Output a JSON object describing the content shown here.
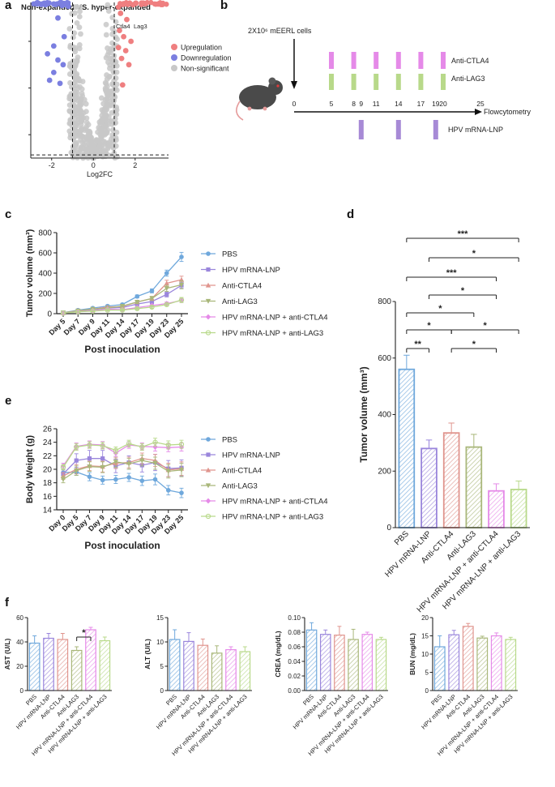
{
  "panel_labels": [
    "a",
    "b",
    "c",
    "d",
    "e",
    "f"
  ],
  "colors": {
    "pbs": "#6fa8dc",
    "hpv": "#9a86dc",
    "ctla4": "#e0958e",
    "lag3": "#a9b77a",
    "hpv_ctla4": "#e58ae8",
    "hpv_lag3": "#b8d98a",
    "up": "#ef7f80",
    "down": "#7b7fe0",
    "ns": "#c8c8c8"
  },
  "chart_data": [
    {
      "id": "a",
      "type": "scatter",
      "title": "Non-expanded VS. hyper-expanded",
      "xlabel": "Log2FC",
      "xticks": [
        "-2",
        "0",
        "2"
      ],
      "xlim": [
        -3,
        3.6
      ],
      "ylim": [
        0,
        1
      ],
      "gene_labels": [
        "Ctla4",
        "Lag3"
      ],
      "legend": [
        "Upregulation",
        "Downregulation",
        "Non-significant"
      ],
      "legend_position": "right",
      "up_points": [
        [
          1.2,
          0.97
        ],
        [
          1.5,
          0.99
        ],
        [
          1.9,
          0.985
        ],
        [
          2.4,
          0.995
        ],
        [
          3.1,
          0.99
        ],
        [
          1.3,
          0.93
        ],
        [
          1.6,
          0.89
        ],
        [
          1.25,
          0.82
        ],
        [
          1.45,
          0.78
        ],
        [
          1.8,
          0.75
        ],
        [
          1.2,
          0.71
        ],
        [
          1.55,
          0.69
        ],
        [
          1.35,
          0.64
        ],
        [
          1.7,
          0.6
        ],
        [
          1.4,
          0.47
        ]
      ],
      "down_points": [
        [
          -2.7,
          0.99
        ],
        [
          -2.3,
          0.985
        ],
        [
          -1.9,
          0.99
        ],
        [
          -1.5,
          0.98
        ],
        [
          -1.2,
          0.975
        ],
        [
          -1.7,
          0.9
        ],
        [
          -1.4,
          0.78
        ],
        [
          -1.9,
          0.72
        ],
        [
          -2.2,
          0.67
        ],
        [
          -1.7,
          0.63
        ],
        [
          -1.45,
          0.6
        ],
        [
          -1.9,
          0.55
        ],
        [
          -2.1,
          0.5
        ],
        [
          -1.6,
          0.48
        ]
      ]
    },
    {
      "id": "b",
      "type": "diagram",
      "cells_label": "2X10⁶ mEERL cells",
      "timeline_ticks": [
        "0",
        "5",
        "8",
        "9",
        "11",
        "14",
        "17",
        "19",
        "20",
        "25"
      ],
      "tick_days": [
        0,
        5,
        8,
        9,
        11,
        14,
        17,
        19,
        20,
        25
      ],
      "endpoint": "Flowcytometry",
      "ctla4_label": "Anti-CTLA4",
      "lag3_label": "Anti-LAG3",
      "hpv_label": "HPV mRNA-LNP",
      "checkpoint_days": [
        5,
        8,
        11,
        14,
        17,
        20
      ],
      "vaccine_days": [
        9,
        14,
        19
      ]
    },
    {
      "id": "c",
      "type": "line",
      "ylabel": "Tumor volume (mm³)",
      "xlabel": "Post inoculation",
      "categories": [
        "Day 5",
        "Day 7",
        "Day 9",
        "Day 11",
        "Day 14",
        "Day 17",
        "Day 19",
        "Day 23",
        "Day 25"
      ],
      "ylim": [
        0,
        800
      ],
      "yticks": [
        "0",
        "200",
        "400",
        "600",
        "800"
      ],
      "legend_position": "right",
      "series": [
        {
          "name": "PBS",
          "values": [
            10,
            35,
            55,
            75,
            90,
            170,
            225,
            400,
            560
          ],
          "err": [
            3,
            5,
            8,
            10,
            12,
            15,
            20,
            30,
            45
          ]
        },
        {
          "name": "HPV mRNA-LNP",
          "values": [
            8,
            25,
            40,
            55,
            60,
            95,
            120,
            190,
            280
          ],
          "err": [
            3,
            5,
            7,
            10,
            10,
            15,
            20,
            25,
            30
          ]
        },
        {
          "name": "Anti-CTLA4",
          "values": [
            8,
            30,
            45,
            65,
            70,
            115,
            150,
            300,
            335
          ],
          "err": [
            3,
            5,
            7,
            10,
            10,
            15,
            20,
            30,
            35
          ]
        },
        {
          "name": "Anti-LAG3",
          "values": [
            10,
            28,
            45,
            55,
            75,
            115,
            150,
            250,
            285
          ],
          "err": [
            3,
            5,
            7,
            10,
            12,
            15,
            20,
            30,
            40
          ]
        },
        {
          "name": "HPV mRNA-LNP + anti-CTLA4",
          "values": [
            5,
            20,
            30,
            45,
            40,
            60,
            80,
            100,
            130
          ],
          "err": [
            2,
            4,
            5,
            7,
            8,
            10,
            12,
            15,
            20
          ]
        },
        {
          "name": "HPV mRNA-LNP + anti-LAG3",
          "values": [
            5,
            18,
            25,
            35,
            35,
            50,
            65,
            90,
            135
          ],
          "err": [
            2,
            4,
            5,
            7,
            8,
            10,
            12,
            15,
            25
          ]
        }
      ]
    },
    {
      "id": "d",
      "type": "bar",
      "ylabel": "Tumor volume (mm³)",
      "categories": [
        "PBS",
        "HPV mRNA-LNP",
        "Anti-CTLA4",
        "Anti-LAG3",
        "HPV mRNA-LNP + anti-CTLA4",
        "HPV mRNA-LNP + anti-LAG3"
      ],
      "values": [
        560,
        280,
        335,
        285,
        130,
        135
      ],
      "errors": [
        50,
        30,
        35,
        45,
        25,
        30
      ],
      "ylim": [
        0,
        800
      ],
      "yticks": [
        "0",
        "200",
        "400",
        "600",
        "800"
      ],
      "significance": [
        {
          "from": 0,
          "to": 5,
          "label": "***"
        },
        {
          "from": 1,
          "to": 5,
          "label": "*"
        },
        {
          "from": 0,
          "to": 4,
          "label": "***"
        },
        {
          "from": 1,
          "to": 4,
          "label": "*"
        },
        {
          "from": 0,
          "to": 3,
          "label": "*"
        },
        {
          "from": 0,
          "to": 2,
          "label": "*"
        },
        {
          "from": 2,
          "to": 5,
          "label": "*"
        },
        {
          "from": 0,
          "to": 1,
          "label": "**"
        },
        {
          "from": 2,
          "to": 4,
          "label": "*"
        }
      ]
    },
    {
      "id": "e",
      "type": "line",
      "ylabel": "Body Weight (g)",
      "xlabel": "Post inoculation",
      "categories": [
        "Day 0",
        "Day 5",
        "Day 7",
        "Day 9",
        "Day 11",
        "Day 14",
        "Day 17",
        "Day 19",
        "Day 23",
        "Day 25"
      ],
      "ylim": [
        14,
        26
      ],
      "yticks": [
        "14",
        "16",
        "18",
        "20",
        "22",
        "24",
        "26"
      ],
      "legend_position": "right",
      "series": [
        {
          "name": "PBS",
          "values": [
            19.5,
            19.6,
            18.9,
            18.4,
            18.5,
            18.8,
            18.3,
            18.5,
            16.9,
            16.5
          ],
          "err": [
            0.5,
            0.5,
            0.6,
            0.6,
            0.6,
            0.6,
            0.7,
            0.8,
            0.7,
            0.7
          ]
        },
        {
          "name": "HPV mRNA-LNP",
          "values": [
            19.3,
            21.3,
            21.6,
            21.6,
            20.5,
            21.0,
            20.6,
            21.0,
            20.1,
            20.2
          ],
          "err": [
            0.6,
            1.0,
            1.2,
            1.2,
            1.0,
            1.0,
            1.0,
            1.2,
            1.2,
            1.2
          ]
        },
        {
          "name": "Anti-CTLA4",
          "values": [
            19.0,
            20.0,
            20.5,
            20.4,
            20.9,
            21.0,
            21.6,
            21.3,
            19.9,
            20.1
          ],
          "err": [
            0.5,
            0.7,
            0.7,
            0.8,
            0.8,
            0.8,
            0.8,
            0.9,
            1.0,
            1.0
          ]
        },
        {
          "name": "Anti-LAG3",
          "values": [
            18.5,
            19.8,
            20.4,
            20.3,
            21.1,
            20.8,
            21.3,
            20.9,
            19.7,
            19.9
          ],
          "err": [
            0.5,
            0.7,
            0.7,
            0.8,
            0.8,
            0.8,
            0.8,
            0.9,
            1.0,
            1.0
          ]
        },
        {
          "name": "HPV mRNA-LNP + anti-CTLA4",
          "values": [
            20.5,
            23.4,
            23.7,
            23.6,
            22.4,
            23.6,
            23.4,
            23.3,
            23.2,
            23.3
          ],
          "err": [
            0.4,
            0.5,
            0.5,
            0.5,
            0.5,
            0.5,
            0.5,
            0.6,
            0.6,
            0.6
          ]
        },
        {
          "name": "HPV mRNA-LNP + anti-LAG3",
          "values": [
            20.3,
            23.3,
            23.6,
            23.5,
            22.8,
            23.8,
            23.3,
            24.0,
            23.6,
            23.7
          ],
          "err": [
            0.4,
            0.5,
            0.5,
            0.5,
            0.5,
            0.5,
            0.5,
            0.6,
            0.6,
            0.6
          ]
        }
      ]
    },
    {
      "id": "f1",
      "type": "bar",
      "ylabel": "AST (U/L)",
      "categories": [
        "PBS",
        "HPV mRNA-LNP",
        "Anti-CTLA4",
        "Anti-LAG3",
        "HPV mRNA-LNP + anti-CTLA4",
        "HPV mRNA-LNP + anti-LAG3"
      ],
      "values": [
        39,
        43,
        42,
        33,
        50,
        41
      ],
      "errors": [
        6,
        4,
        5,
        3,
        2,
        3
      ],
      "ylim": [
        0,
        60
      ],
      "yticks": [
        "0",
        "20",
        "40",
        "60"
      ],
      "significance": [
        {
          "from": 3,
          "to": 4,
          "label": "*"
        }
      ]
    },
    {
      "id": "f2",
      "type": "bar",
      "ylabel": "ALT (U/L)",
      "categories": [
        "PBS",
        "HPV mRNA-LNP",
        "Anti-CTLA4",
        "Anti-LAG3",
        "HPV mRNA-LNP + anti-CTLA4",
        "HPV mRNA-LNP + anti-LAG3"
      ],
      "values": [
        10.5,
        10.1,
        9.3,
        7.7,
        8.4,
        8.0
      ],
      "errors": [
        2.0,
        1.8,
        1.3,
        1.5,
        0.6,
        1.0
      ],
      "ylim": [
        0,
        15
      ],
      "yticks": [
        "0",
        "5",
        "10",
        "15"
      ]
    },
    {
      "id": "f3",
      "type": "bar",
      "ylabel": "CREA (mg/dL)",
      "categories": [
        "PBS",
        "HPV mRNA-LNP",
        "Anti-CTLA4",
        "Anti-LAG3",
        "HPV mRNA-LNP + anti-CTLA4",
        "HPV mRNA-LNP + anti-LAG3"
      ],
      "values": [
        0.083,
        0.077,
        0.076,
        0.07,
        0.077,
        0.07
      ],
      "errors": [
        0.01,
        0.006,
        0.012,
        0.014,
        0.003,
        0.003
      ],
      "ylim": [
        0,
        0.1
      ],
      "yticks": [
        "0.00",
        "0.02",
        "0.04",
        "0.06",
        "0.08",
        "0.10"
      ]
    },
    {
      "id": "f4",
      "type": "bar",
      "ylabel": "BUN (mg/dL)",
      "categories": [
        "PBS",
        "HPV mRNA-LNP",
        "Anti-CTLA4",
        "Anti-LAG3",
        "HPV mRNA-LNP + anti-CTLA4",
        "HPV mRNA-LNP + anti-LAG3"
      ],
      "values": [
        12.0,
        15.3,
        17.6,
        14.4,
        15.0,
        14.0
      ],
      "errors": [
        3.0,
        1.2,
        0.8,
        0.5,
        0.8,
        0.6
      ],
      "ylim": [
        0,
        20
      ],
      "yticks": [
        "0",
        "5",
        "10",
        "15",
        "20"
      ]
    }
  ]
}
